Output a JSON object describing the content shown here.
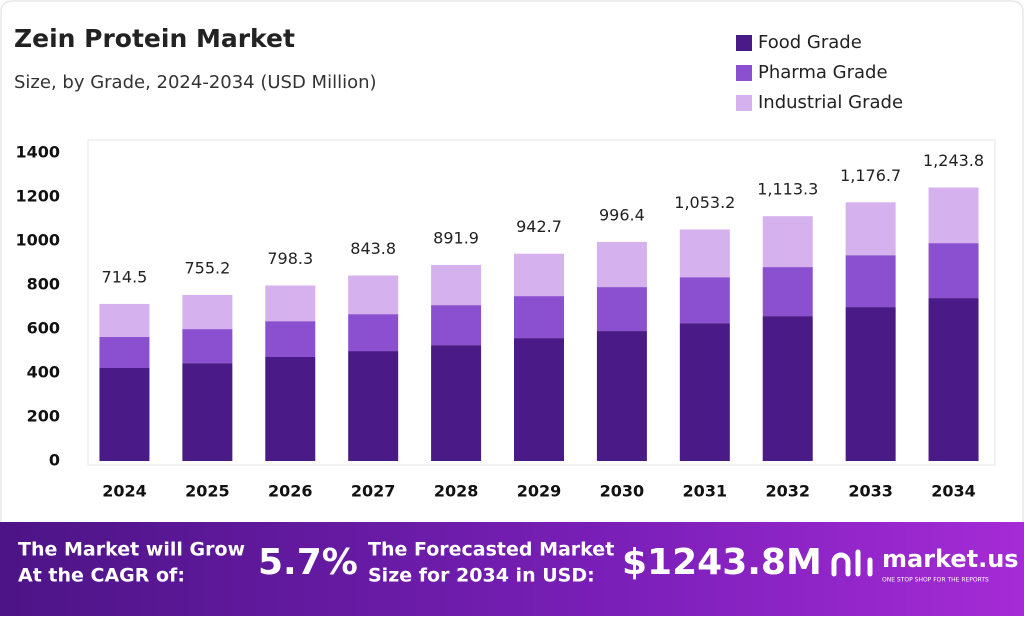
{
  "chart_data": {
    "type": "stacked-bar",
    "title": "Zein Protein Market",
    "subtitle": "Size, by Grade, 2024-2034 (USD Million)",
    "categories": [
      "2024",
      "2025",
      "2026",
      "2027",
      "2028",
      "2029",
      "2030",
      "2031",
      "2032",
      "2033",
      "2034"
    ],
    "series": [
      {
        "name": "Food Grade",
        "color": "#4a1a86",
        "values": [
          423,
          445,
          473,
          500,
          527,
          559,
          591,
          627,
          659,
          700,
          741
        ]
      },
      {
        "name": "Pharma Grade",
        "color": "#8b50cf",
        "values": [
          141,
          155,
          163,
          168,
          182,
          191,
          200,
          209,
          223,
          236,
          250
        ]
      },
      {
        "name": "Industrial Grade",
        "color": "#d5b1ee",
        "values": [
          150.5,
          155.2,
          162.3,
          175.8,
          182.9,
          192.7,
          205.4,
          217.2,
          231.3,
          240.7,
          252.8
        ]
      }
    ],
    "totals": {
      "values": [
        714.5,
        755.2,
        798.3,
        843.8,
        891.9,
        942.7,
        996.4,
        1053.2,
        1113.3,
        1176.7,
        1243.8
      ],
      "value_labels": [
        "714.5",
        "755.2",
        "798.3",
        "843.8",
        "891.9",
        "942.7",
        "996.4",
        "1,053.2",
        "1,113.3",
        "1,176.7",
        "1,243.8"
      ]
    },
    "ylim": [
      0,
      1460
    ],
    "yticks": [
      0,
      200,
      400,
      600,
      800,
      1000,
      1200,
      1400
    ],
    "grid": false,
    "legend": "top-right"
  },
  "footer": {
    "cagr_text": [
      "The Market will Grow",
      "At the CAGR of:"
    ],
    "cagr": "5.7%",
    "forecast_text": [
      "The Forecasted Market",
      "Size for 2034 in USD:"
    ],
    "forecast": "$1243.8M",
    "brand": "market.us",
    "tagline": "ONE STOP SHOP FOR THE REPORTS"
  }
}
